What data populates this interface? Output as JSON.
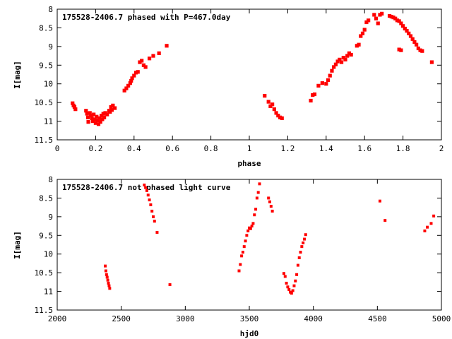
{
  "chart_data": [
    {
      "type": "scatter",
      "title": "175528-2406.7 phased with P=467.0day",
      "xlabel": "phase",
      "ylabel": "I[mag]",
      "xlim": [
        0,
        2
      ],
      "ylim": [
        11.5,
        8
      ],
      "y_inverted": true,
      "xticks": [
        "0",
        "0.2",
        "0.4",
        "0.6",
        "0.8",
        "1",
        "1.2",
        "1.4",
        "1.6",
        "1.8",
        "2"
      ],
      "yticks": [
        "8",
        "8.5",
        "9",
        "9.5",
        "10",
        "10.5",
        "11",
        "11.5"
      ],
      "grid": false,
      "marker_color": "#ff0000",
      "series": [
        {
          "points": [
            [
              0.08,
              10.52
            ],
            [
              0.085,
              10.58
            ],
            [
              0.09,
              10.62
            ],
            [
              0.095,
              10.68
            ],
            [
              0.15,
              10.72
            ],
            [
              0.155,
              10.8
            ],
            [
              0.16,
              10.9
            ],
            [
              0.162,
              11.02
            ],
            [
              0.17,
              10.78
            ],
            [
              0.175,
              10.85
            ],
            [
              0.18,
              10.92
            ],
            [
              0.185,
              11.0
            ],
            [
              0.19,
              10.82
            ],
            [
              0.195,
              10.95
            ],
            [
              0.2,
              11.05
            ],
            [
              0.205,
              10.88
            ],
            [
              0.21,
              10.98
            ],
            [
              0.215,
              11.08
            ],
            [
              0.22,
              10.92
            ],
            [
              0.225,
              11.02
            ],
            [
              0.23,
              10.85
            ],
            [
              0.235,
              10.95
            ],
            [
              0.24,
              10.8
            ],
            [
              0.245,
              10.9
            ],
            [
              0.25,
              10.78
            ],
            [
              0.26,
              10.82
            ],
            [
              0.27,
              10.72
            ],
            [
              0.275,
              10.75
            ],
            [
              0.28,
              10.62
            ],
            [
              0.285,
              10.7
            ],
            [
              0.29,
              10.58
            ],
            [
              0.3,
              10.65
            ],
            [
              0.35,
              10.18
            ],
            [
              0.36,
              10.12
            ],
            [
              0.37,
              10.05
            ],
            [
              0.38,
              9.98
            ],
            [
              0.385,
              9.92
            ],
            [
              0.39,
              9.85
            ],
            [
              0.4,
              9.78
            ],
            [
              0.41,
              9.7
            ],
            [
              0.42,
              9.68
            ],
            [
              0.43,
              9.42
            ],
            [
              0.44,
              9.38
            ],
            [
              0.45,
              9.5
            ],
            [
              0.46,
              9.55
            ],
            [
              0.48,
              9.32
            ],
            [
              0.5,
              9.25
            ],
            [
              0.53,
              9.18
            ],
            [
              0.57,
              8.98
            ],
            [
              1.08,
              10.32
            ],
            [
              1.1,
              10.48
            ],
            [
              1.11,
              10.6
            ],
            [
              1.12,
              10.55
            ],
            [
              1.13,
              10.68
            ],
            [
              1.14,
              10.78
            ],
            [
              1.15,
              10.85
            ],
            [
              1.16,
              10.9
            ],
            [
              1.17,
              10.92
            ],
            [
              1.32,
              10.45
            ],
            [
              1.33,
              10.3
            ],
            [
              1.34,
              10.28
            ],
            [
              1.36,
              10.05
            ],
            [
              1.38,
              9.98
            ],
            [
              1.4,
              10.0
            ],
            [
              1.41,
              9.9
            ],
            [
              1.42,
              9.78
            ],
            [
              1.43,
              9.65
            ],
            [
              1.44,
              9.55
            ],
            [
              1.45,
              9.48
            ],
            [
              1.46,
              9.4
            ],
            [
              1.47,
              9.35
            ],
            [
              1.48,
              9.42
            ],
            [
              1.49,
              9.3
            ],
            [
              1.5,
              9.35
            ],
            [
              1.51,
              9.25
            ],
            [
              1.52,
              9.18
            ],
            [
              1.53,
              9.22
            ],
            [
              1.56,
              8.98
            ],
            [
              1.57,
              8.95
            ],
            [
              1.58,
              8.72
            ],
            [
              1.59,
              8.65
            ],
            [
              1.6,
              8.55
            ],
            [
              1.61,
              8.35
            ],
            [
              1.62,
              8.3
            ],
            [
              1.65,
              8.15
            ],
            [
              1.66,
              8.25
            ],
            [
              1.67,
              8.38
            ],
            [
              1.68,
              8.15
            ],
            [
              1.69,
              8.12
            ],
            [
              1.73,
              8.18
            ],
            [
              1.74,
              8.2
            ],
            [
              1.75,
              8.22
            ],
            [
              1.76,
              8.25
            ],
            [
              1.77,
              8.3
            ],
            [
              1.78,
              8.32
            ],
            [
              1.79,
              8.38
            ],
            [
              1.8,
              8.45
            ],
            [
              1.81,
              8.52
            ],
            [
              1.82,
              8.58
            ],
            [
              1.83,
              8.65
            ],
            [
              1.84,
              8.72
            ],
            [
              1.85,
              8.8
            ],
            [
              1.86,
              8.88
            ],
            [
              1.87,
              8.95
            ],
            [
              1.88,
              9.05
            ],
            [
              1.89,
              9.1
            ],
            [
              1.9,
              9.12
            ],
            [
              1.78,
              9.08
            ],
            [
              1.79,
              9.1
            ],
            [
              1.95,
              9.42
            ]
          ]
        }
      ]
    },
    {
      "type": "scatter",
      "title": "175528-2406.7 not phased light curve",
      "xlabel": "hjd0",
      "ylabel": "I[mag]",
      "xlim": [
        2000,
        5000
      ],
      "ylim": [
        11.5,
        8
      ],
      "y_inverted": true,
      "xticks": [
        "2000",
        "2500",
        "3000",
        "3500",
        "4000",
        "4500",
        "5000"
      ],
      "yticks": [
        "8",
        "8.5",
        "9",
        "9.5",
        "10",
        "10.5",
        "11",
        "11.5"
      ],
      "grid": false,
      "marker_color": "#ff0000",
      "series": [
        {
          "points": [
            [
              2375,
              10.32
            ],
            [
              2380,
              10.45
            ],
            [
              2385,
              10.55
            ],
            [
              2390,
              10.62
            ],
            [
              2395,
              10.7
            ],
            [
              2400,
              10.78
            ],
            [
              2405,
              10.85
            ],
            [
              2410,
              10.92
            ],
            [
              2680,
              8.15
            ],
            [
              2690,
              8.22
            ],
            [
              2700,
              8.3
            ],
            [
              2710,
              8.42
            ],
            [
              2720,
              8.55
            ],
            [
              2730,
              8.68
            ],
            [
              2740,
              8.85
            ],
            [
              2750,
              9.0
            ],
            [
              2760,
              9.12
            ],
            [
              2780,
              9.42
            ],
            [
              2880,
              10.82
            ],
            [
              3420,
              10.45
            ],
            [
              3430,
              10.28
            ],
            [
              3440,
              10.05
            ],
            [
              3450,
              9.95
            ],
            [
              3460,
              9.8
            ],
            [
              3470,
              9.65
            ],
            [
              3480,
              9.5
            ],
            [
              3490,
              9.38
            ],
            [
              3500,
              9.3
            ],
            [
              3510,
              9.32
            ],
            [
              3520,
              9.25
            ],
            [
              3530,
              9.18
            ],
            [
              3540,
              8.95
            ],
            [
              3550,
              8.8
            ],
            [
              3560,
              8.5
            ],
            [
              3570,
              8.35
            ],
            [
              3580,
              8.12
            ],
            [
              3650,
              8.5
            ],
            [
              3660,
              8.6
            ],
            [
              3670,
              8.72
            ],
            [
              3680,
              8.85
            ],
            [
              3770,
              10.52
            ],
            [
              3780,
              10.6
            ],
            [
              3790,
              10.78
            ],
            [
              3800,
              10.88
            ],
            [
              3810,
              10.95
            ],
            [
              3820,
              11.02
            ],
            [
              3830,
              11.05
            ],
            [
              3840,
              10.98
            ],
            [
              3850,
              10.85
            ],
            [
              3860,
              10.72
            ],
            [
              3870,
              10.55
            ],
            [
              3880,
              10.3
            ],
            [
              3890,
              10.1
            ],
            [
              3900,
              9.95
            ],
            [
              3910,
              9.8
            ],
            [
              3920,
              9.7
            ],
            [
              3930,
              9.6
            ],
            [
              3940,
              9.48
            ],
            [
              4520,
              8.58
            ],
            [
              4560,
              9.1
            ],
            [
              4870,
              9.38
            ],
            [
              4890,
              9.28
            ],
            [
              4920,
              9.18
            ],
            [
              4940,
              8.98
            ]
          ]
        }
      ]
    }
  ]
}
